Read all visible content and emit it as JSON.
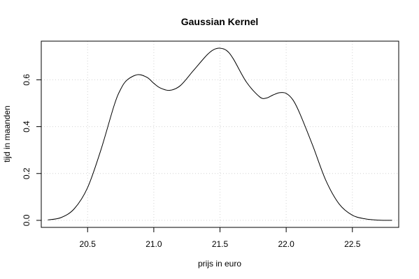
{
  "chart_data": {
    "type": "line",
    "title": "Gaussian Kernel",
    "xlabel": "prijs in euro",
    "ylabel": "tijd in maanden",
    "xlim": [
      20.15,
      22.85
    ],
    "ylim": [
      -0.03,
      0.765
    ],
    "x_ticks": [
      20.5,
      21.0,
      21.5,
      22.0,
      22.5
    ],
    "x_tick_labels": [
      "20.5",
      "21.0",
      "21.5",
      "22.0",
      "22.5"
    ],
    "y_ticks": [
      0.0,
      0.2,
      0.4,
      0.6
    ],
    "y_tick_labels": [
      "0.0",
      "0.2",
      "0.4",
      "0.6"
    ],
    "grid": true,
    "series": [
      {
        "x": [
          20.2,
          20.3,
          20.4,
          20.5,
          20.6,
          20.7,
          20.75,
          20.8,
          20.88,
          20.95,
          21.0,
          21.05,
          21.12,
          21.2,
          21.3,
          21.4,
          21.45,
          21.5,
          21.55,
          21.6,
          21.7,
          21.8,
          21.85,
          21.9,
          21.95,
          22.0,
          22.05,
          22.1,
          22.2,
          22.3,
          22.4,
          22.5,
          22.6,
          22.7,
          22.8
        ],
        "y": [
          0.002,
          0.012,
          0.05,
          0.14,
          0.3,
          0.49,
          0.56,
          0.6,
          0.622,
          0.61,
          0.585,
          0.565,
          0.555,
          0.575,
          0.64,
          0.705,
          0.728,
          0.735,
          0.725,
          0.69,
          0.59,
          0.527,
          0.522,
          0.535,
          0.545,
          0.542,
          0.515,
          0.46,
          0.32,
          0.17,
          0.07,
          0.022,
          0.006,
          0.001,
          0.0
        ]
      }
    ]
  }
}
